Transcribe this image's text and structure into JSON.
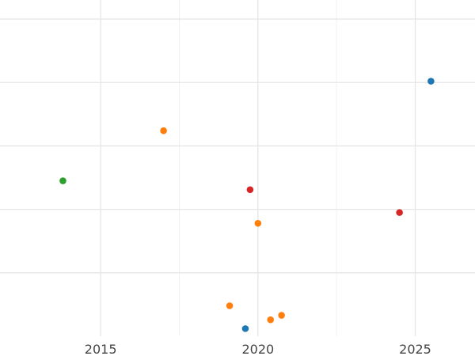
{
  "chart_data": {
    "type": "scatter",
    "title": "",
    "xlabel": "",
    "ylabel": "",
    "xlim": [
      2011.8,
      2026.9
    ],
    "ylim": [
      0,
      5.3
    ],
    "grid": true,
    "x_ticks": [
      2015,
      2020,
      2025
    ],
    "x_minor_ticks": [
      2017.5,
      2022.5
    ],
    "y_gridlines": [
      1,
      2,
      3,
      4,
      5
    ],
    "y_minor_gridlines": [],
    "colors": {
      "blue": "#1f77b4",
      "orange": "#ff7f0e",
      "green": "#2ca02c",
      "red": "#d62728"
    },
    "points": [
      {
        "x": 2025.5,
        "y": 4.02,
        "color": "blue"
      },
      {
        "x": 2019.6,
        "y": 0.12,
        "color": "blue"
      },
      {
        "x": 2017.0,
        "y": 3.24,
        "color": "orange"
      },
      {
        "x": 2020.0,
        "y": 1.78,
        "color": "orange"
      },
      {
        "x": 2019.1,
        "y": 0.48,
        "color": "orange"
      },
      {
        "x": 2020.4,
        "y": 0.26,
        "color": "orange"
      },
      {
        "x": 2020.75,
        "y": 0.33,
        "color": "orange"
      },
      {
        "x": 2013.8,
        "y": 2.45,
        "color": "green"
      },
      {
        "x": 2019.75,
        "y": 2.31,
        "color": "red"
      },
      {
        "x": 2024.5,
        "y": 1.95,
        "color": "red"
      }
    ]
  }
}
